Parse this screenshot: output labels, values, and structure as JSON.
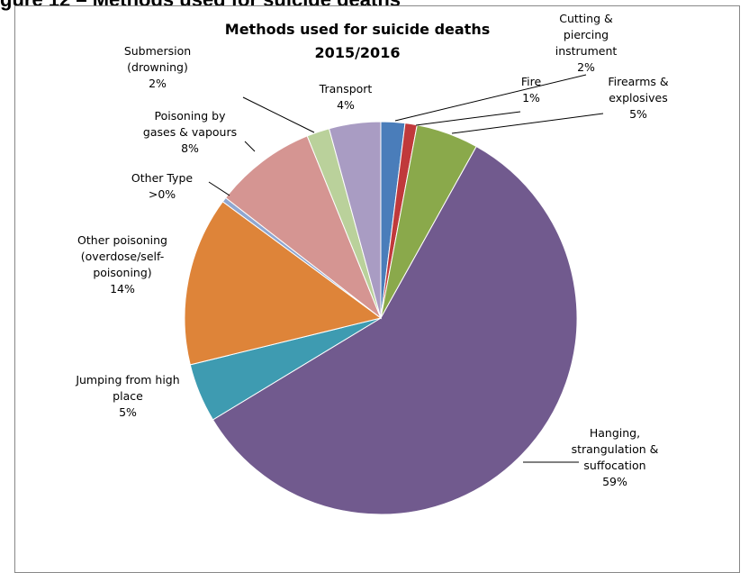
{
  "page": {
    "heading_fragment": "gure 12 – Methods used for suicide deaths"
  },
  "chart_data": {
    "type": "pie",
    "title_lines": [
      "Methods used for suicide deaths",
      "2015/2016"
    ],
    "slices": [
      {
        "name": "Cutting & piercing instrument",
        "label_lines": [
          "Cutting &",
          "piercing",
          "instrument"
        ],
        "pct_label": "2%",
        "value": 2.0,
        "color": "#4a7dba"
      },
      {
        "name": "Fire",
        "label_lines": [
          "Fire"
        ],
        "pct_label": "1%",
        "value": 1.0,
        "color": "#c0393b"
      },
      {
        "name": "Firearms & explosives",
        "label_lines": [
          "Firearms &",
          "explosives"
        ],
        "pct_label": "5%",
        "value": 5.2,
        "color": "#8aa94b"
      },
      {
        "name": "Hanging, strangulation & suffocation",
        "label_lines": [
          "Hanging,",
          "strangulation &",
          "suffocation"
        ],
        "pct_label": "59%",
        "value": 59.0,
        "color": "#715a8e"
      },
      {
        "name": "Jumping from high place",
        "label_lines": [
          "Jumping from high",
          "place"
        ],
        "pct_label": "5%",
        "value": 4.9,
        "color": "#3e9bb1"
      },
      {
        "name": "Other poisoning (overdose/self-poisoning)",
        "label_lines": [
          "Other poisoning",
          "(overdose/self-",
          "poisoning)"
        ],
        "pct_label": "14%",
        "value": 14.1,
        "color": "#de8439"
      },
      {
        "name": "Other Type",
        "label_lines": [
          "Other Type"
        ],
        "pct_label": ">0%",
        "value": 0.4,
        "color": "#8fa7d1"
      },
      {
        "name": "Poisoning by gases & vapours",
        "label_lines": [
          "Poisoning by",
          "gases & vapours"
        ],
        "pct_label": "8%",
        "value": 8.5,
        "color": "#d59592"
      },
      {
        "name": "Submersion (drowning)",
        "label_lines": [
          "Submersion",
          "(drowning)"
        ],
        "pct_label": "2%",
        "value": 1.9,
        "color": "#bad19b"
      },
      {
        "name": "Transport",
        "label_lines": [
          "Transport"
        ],
        "pct_label": "4%",
        "value": 4.3,
        "color": "#a99cc3"
      }
    ]
  }
}
